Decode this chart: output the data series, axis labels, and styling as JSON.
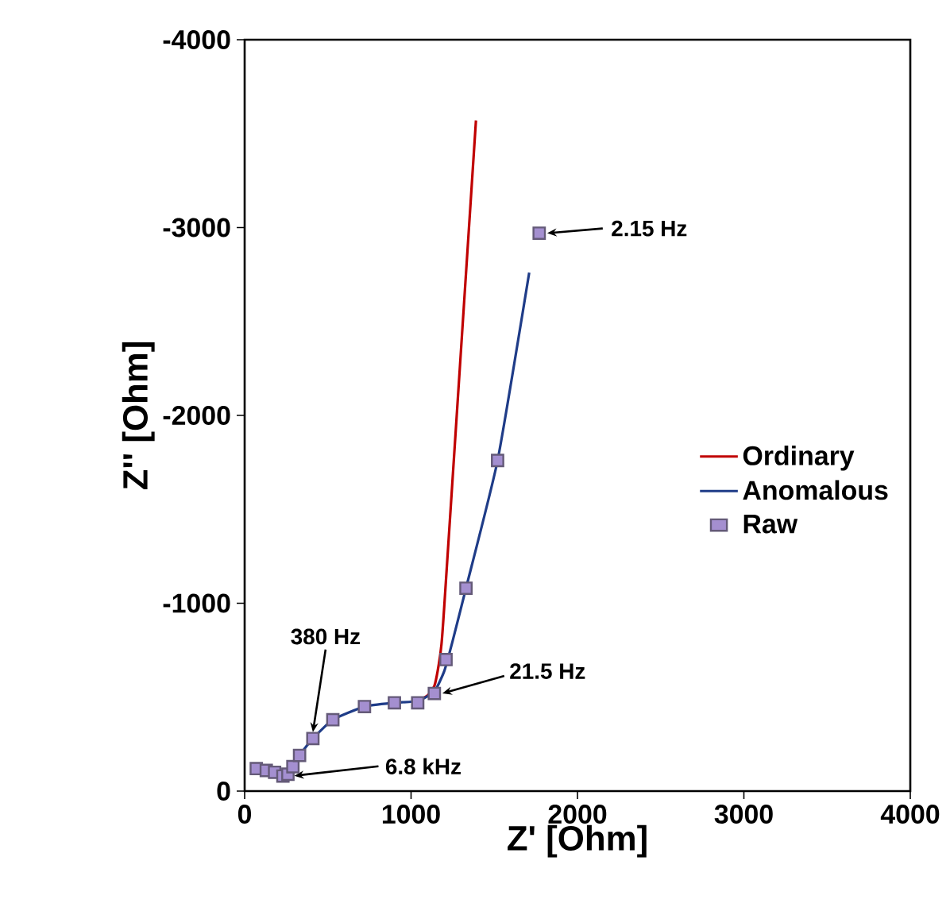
{
  "chart_data": {
    "type": "line",
    "xlabel": "Z' [Ohm]",
    "ylabel": "Z'' [Ohm]",
    "xlim": [
      0,
      4000
    ],
    "xticks": [
      0,
      1000,
      2000,
      3000,
      4000
    ],
    "ylim": [
      0,
      -4000
    ],
    "yticks": [
      0,
      -1000,
      -2000,
      -3000,
      -4000
    ],
    "grid": false,
    "legend": "right",
    "series": [
      {
        "name": "Ordinary",
        "color": "#c00000",
        "x": [
          1040,
          1100,
          1140,
          1160,
          1180,
          1200,
          1390
        ],
        "values": [
          -480,
          -510,
          -560,
          -640,
          -760,
          -990,
          -3570
        ]
      },
      {
        "name": "Anomalous",
        "color": "#1f3c88",
        "x": [
          70,
          130,
          180,
          230,
          260,
          290,
          330,
          410,
          530,
          720,
          900,
          1040,
          1140,
          1200,
          1250,
          1330,
          1520,
          1710
        ],
        "values": [
          -120,
          -110,
          -100,
          -80,
          -90,
          -130,
          -190,
          -280,
          -380,
          -450,
          -470,
          -480,
          -530,
          -640,
          -800,
          -1080,
          -1760,
          -2760
        ]
      },
      {
        "name": "Raw",
        "type": "scatter",
        "marker": "square",
        "color": "#a48fd0",
        "x": [
          70,
          130,
          180,
          230,
          260,
          290,
          330,
          410,
          530,
          720,
          900,
          1040,
          1140,
          1210,
          1330,
          1520,
          1770
        ],
        "values": [
          -120,
          -110,
          -100,
          -80,
          -90,
          -130,
          -190,
          -280,
          -380,
          -450,
          -470,
          -470,
          -520,
          -700,
          -1080,
          -1760,
          -2970
        ]
      }
    ],
    "annotations": [
      {
        "text": "2.15 Hz",
        "x": 1770,
        "y": -2970
      },
      {
        "text": "21.5 Hz",
        "x": 1140,
        "y": -520
      },
      {
        "text": "380 Hz",
        "x": 410,
        "y": -280
      },
      {
        "text": "6.8 kHz",
        "x": 260,
        "y": -90
      }
    ]
  }
}
